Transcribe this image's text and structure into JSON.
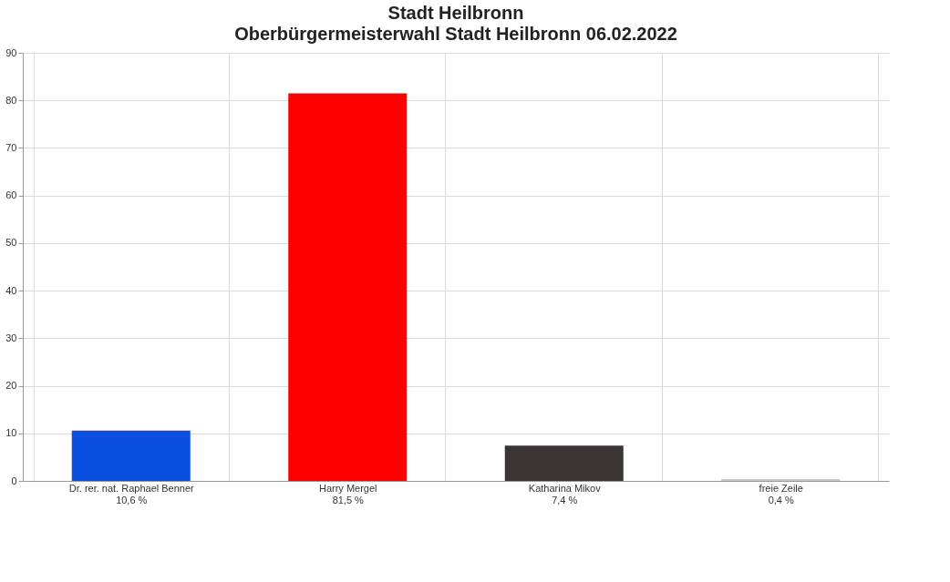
{
  "chart_data": {
    "type": "bar",
    "title": "Stadt Heilbronn",
    "subtitle": "Oberbürgermeisterwahl Stadt Heilbronn 06.02.2022",
    "categories": [
      "Dr. rer. nat. Raphael Benner",
      "Harry Mergel",
      "Katharina Mikov",
      "freie Zeile"
    ],
    "values": [
      10.6,
      81.5,
      7.4,
      0.4
    ],
    "value_labels": [
      "10,6 %",
      "81,5 %",
      "7,4 %",
      "0,4 %"
    ],
    "colors": [
      "#0a4fe0",
      "#ff0000",
      "#3b3536",
      "#c8c8c8"
    ],
    "ylim": [
      0,
      90
    ],
    "yticks": [
      0,
      10,
      20,
      30,
      40,
      50,
      60,
      70,
      80,
      90
    ],
    "grid": true,
    "legend": false
  }
}
